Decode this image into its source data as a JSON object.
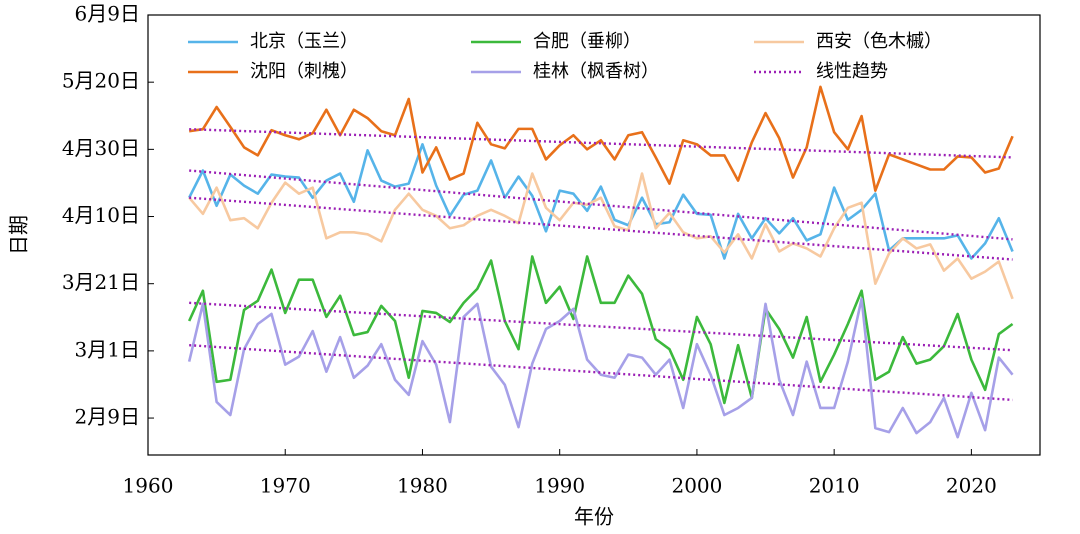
{
  "chart_data": {
    "type": "line",
    "x_label": "年份",
    "y_label": "日期",
    "xlim": [
      1960,
      2025
    ],
    "xticks": [
      1960,
      1970,
      1980,
      1990,
      2000,
      2010,
      2020
    ],
    "ylim": [
      29,
      160
    ],
    "yticks": [
      {
        "value": 40,
        "label": "2月9日"
      },
      {
        "value": 60,
        "label": "3月1日"
      },
      {
        "value": 80,
        "label": "3月21日"
      },
      {
        "value": 100,
        "label": "4月10日"
      },
      {
        "value": 120,
        "label": "4月30日"
      },
      {
        "value": 140,
        "label": "5月20日"
      },
      {
        "value": 160,
        "label": "6月9日"
      }
    ],
    "trend_name": "线性趋势",
    "trend_color": "#9b1fb5",
    "x": [
      1963,
      1964,
      1965,
      1966,
      1967,
      1968,
      1969,
      1970,
      1971,
      1972,
      1973,
      1974,
      1975,
      1976,
      1977,
      1978,
      1979,
      1980,
      1981,
      1982,
      1983,
      1984,
      1985,
      1986,
      1987,
      1988,
      1989,
      1990,
      1991,
      1992,
      1993,
      1994,
      1995,
      1996,
      1997,
      1998,
      1999,
      2000,
      2001,
      2002,
      2003,
      2004,
      2005,
      2006,
      2007,
      2008,
      2009,
      2010,
      2011,
      2012,
      2013,
      2014,
      2015,
      2016,
      2017,
      2018,
      2019,
      2020,
      2021,
      2022,
      2023
    ],
    "series": [
      {
        "name": "北京（玉兰）",
        "color": "#56b4e9",
        "trend": [
          113.7,
          93.2
        ],
        "values": [
          105.6,
          113.7,
          103.2,
          112.5,
          109.2,
          106.8,
          112.5,
          111.9,
          111.6,
          105.6,
          110.7,
          112.8,
          104.4,
          119.7,
          110.7,
          108.9,
          109.8,
          121.5,
          109.2,
          100.2,
          106.5,
          107.7,
          116.7,
          105.6,
          111.9,
          106.2,
          95.6,
          107.7,
          106.8,
          101.7,
          108.9,
          99.0,
          97.4,
          105.6,
          97.7,
          98.3,
          106.5,
          100.8,
          100.5,
          87.5,
          100.8,
          93.5,
          99.5,
          95.0,
          99.5,
          92.9,
          94.7,
          108.6,
          99.0,
          102.0,
          106.8,
          89.9,
          93.5,
          93.5,
          93.5,
          93.5,
          94.4,
          87.5,
          92.0,
          99.5,
          89.6
        ]
      },
      {
        "name": "沈阳（刺槐）",
        "color": "#e8701a",
        "trend": [
          126.0,
          117.6
        ],
        "values": [
          125.4,
          126.0,
          132.6,
          126.7,
          120.6,
          118.2,
          125.7,
          124.2,
          123.0,
          124.8,
          131.8,
          124.2,
          131.8,
          129.3,
          125.4,
          124.2,
          135.0,
          113.1,
          120.6,
          111.0,
          112.8,
          127.9,
          121.5,
          120.3,
          126.1,
          126.1,
          117.0,
          121.2,
          124.2,
          120.0,
          122.7,
          117.0,
          124.2,
          125.1,
          117.6,
          109.8,
          122.7,
          121.5,
          118.2,
          118.2,
          110.7,
          122.1,
          130.8,
          123.3,
          111.6,
          120.6,
          138.6,
          125.1,
          120.0,
          129.9,
          107.7,
          118.5,
          117.0,
          115.5,
          114.0,
          114.0,
          117.9,
          117.6,
          113.1,
          114.3,
          123.9
        ]
      },
      {
        "name": "合肥（垂柳）",
        "color": "#3cb93c",
        "trend": [
          74.3,
          60.2
        ],
        "values": [
          68.9,
          77.9,
          50.8,
          51.4,
          72.2,
          74.9,
          84.2,
          71.3,
          81.2,
          81.2,
          70.1,
          76.4,
          64.7,
          65.6,
          73.4,
          68.9,
          52.0,
          71.9,
          71.3,
          68.6,
          74.3,
          78.5,
          86.9,
          68.9,
          60.5,
          88.1,
          74.3,
          79.1,
          69.5,
          88.1,
          74.3,
          74.3,
          82.4,
          77.0,
          63.5,
          60.5,
          51.4,
          70.1,
          62.0,
          44.5,
          61.7,
          46.0,
          72.5,
          66.5,
          58.0,
          70.1,
          50.8,
          58.9,
          68.0,
          77.9,
          51.4,
          53.8,
          64.1,
          56.2,
          57.4,
          61.4,
          71.0,
          57.4,
          48.4,
          65.0,
          68.0
        ]
      },
      {
        "name": "桂林（枫香树）",
        "color": "#a6a0e8",
        "trend": [
          61.7,
          45.4
        ],
        "values": [
          56.8,
          74.0,
          44.8,
          40.9,
          60.5,
          68.0,
          71.0,
          55.9,
          58.3,
          65.9,
          53.8,
          64.1,
          52.0,
          55.6,
          62.0,
          51.4,
          46.9,
          62.9,
          55.9,
          38.8,
          70.1,
          74.0,
          55.3,
          49.9,
          37.3,
          56.2,
          66.5,
          68.9,
          72.5,
          57.4,
          52.9,
          52.0,
          58.9,
          58.0,
          52.9,
          57.4,
          43.0,
          62.0,
          52.9,
          40.9,
          43.0,
          46.0,
          74.0,
          51.4,
          40.9,
          56.8,
          43.0,
          43.0,
          56.8,
          75.5,
          37.0,
          35.8,
          43.0,
          35.5,
          38.8,
          46.0,
          34.3,
          47.5,
          36.4,
          58.0,
          52.9
        ]
      },
      {
        "name": "西安（色木槭）",
        "color": "#f7c9a0",
        "trend": [
          105.6,
          87.2
        ],
        "values": [
          105.6,
          100.8,
          108.6,
          98.9,
          99.5,
          96.5,
          104.1,
          110.1,
          106.8,
          108.6,
          93.5,
          95.3,
          95.3,
          94.7,
          92.6,
          102.0,
          106.8,
          102.0,
          100.2,
          96.5,
          97.4,
          100.2,
          102.0,
          100.2,
          98.0,
          112.8,
          102.6,
          98.9,
          104.1,
          103.5,
          105.6,
          97.1,
          95.9,
          112.8,
          96.5,
          101.1,
          95.3,
          93.5,
          94.1,
          89.3,
          94.7,
          87.5,
          97.7,
          89.6,
          92.0,
          90.5,
          88.1,
          96.5,
          102.6,
          104.1,
          80.0,
          89.0,
          93.5,
          90.5,
          91.7,
          83.9,
          87.5,
          81.5,
          83.6,
          86.6,
          75.5
        ]
      }
    ]
  }
}
